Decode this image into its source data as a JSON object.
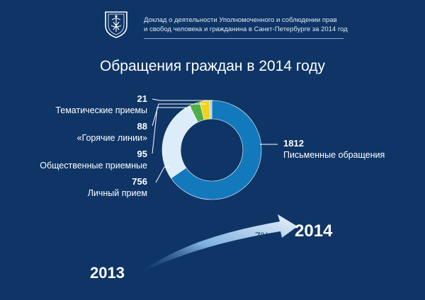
{
  "header": {
    "report_line1": "Доклад о деятельности Уполномоченного и соблюдении прав",
    "report_line2": "и свобод человека и гражданина в Санкт-Петербурге за 2014 год"
  },
  "chart_data": {
    "type": "pie",
    "variant": "donut",
    "title": "Обращения граждан в 2014 году",
    "categories": [
      "Письменные обращения",
      "Личный прием",
      "Общественные приемные",
      "«Горячие линии»",
      "Тематические приемы"
    ],
    "values": [
      1812,
      756,
      95,
      88,
      21
    ],
    "colors": [
      "#1379bd",
      "#dcecf8",
      "#4fae4a",
      "#f2d11b",
      "#a7d0ec"
    ],
    "labels": [
      {
        "value": "1812",
        "name": "Письменные обращения"
      },
      {
        "value": "756",
        "name": "Личный прием"
      },
      {
        "value": "95",
        "name": "Общественные приемные"
      },
      {
        "value": "88",
        "name": "«Горячие линии»"
      },
      {
        "value": "21",
        "name": "Тематические приемы"
      }
    ]
  },
  "growth": {
    "from_year": "2013",
    "to_year": "2014",
    "change": "7%"
  }
}
